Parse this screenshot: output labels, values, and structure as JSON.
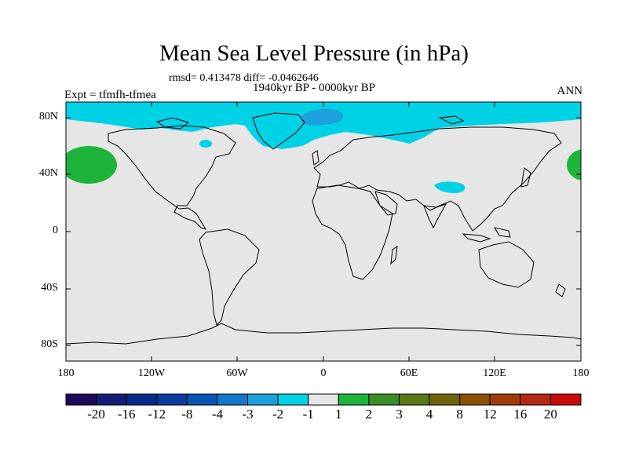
{
  "title": "Mean Sea Level Pressure (in hPa)",
  "stats": "rmsd= 0.413478 diff= -0.0462646",
  "period": "1940kyr BP - 0000kyr BP",
  "experiment": "Expt = tfmfh-tfmea",
  "season": "ANN",
  "latitude_labels": [
    "80N",
    "40N",
    "0",
    "40S",
    "80S"
  ],
  "longitude_labels": [
    "180",
    "120W",
    "60W",
    "0",
    "60E",
    "120E",
    "180"
  ],
  "colorbar": {
    "labels": [
      "-20",
      "-16",
      "-12",
      "-8",
      "-4",
      "-3",
      "-2",
      "-1",
      "1",
      "2",
      "3",
      "4",
      "8",
      "12",
      "16",
      "20"
    ],
    "colors": [
      "#1c0a5c",
      "#141c78",
      "#0a2a8c",
      "#0a3ca0",
      "#0a55b4",
      "#1478c8",
      "#1ea0dc",
      "#00d2e6",
      "#e6e6e6",
      "#1eb43c",
      "#3c8c28",
      "#5a7814",
      "#6e640a",
      "#8c5000",
      "#a03c0a",
      "#b42814",
      "#c80a0a"
    ]
  },
  "anomaly_regions": [
    {
      "label": "Arctic low (-2 to -1)",
      "color": "#00d2e6"
    },
    {
      "label": "Greenland low (-3 to -2)",
      "color": "#1ea0dc"
    },
    {
      "label": "Tibet low (-2 to -1)",
      "color": "#00d2e6"
    },
    {
      "label": "North Pacific high (1 to 2)",
      "color": "#1eb43c"
    }
  ],
  "background_color": "#e6e6e6"
}
